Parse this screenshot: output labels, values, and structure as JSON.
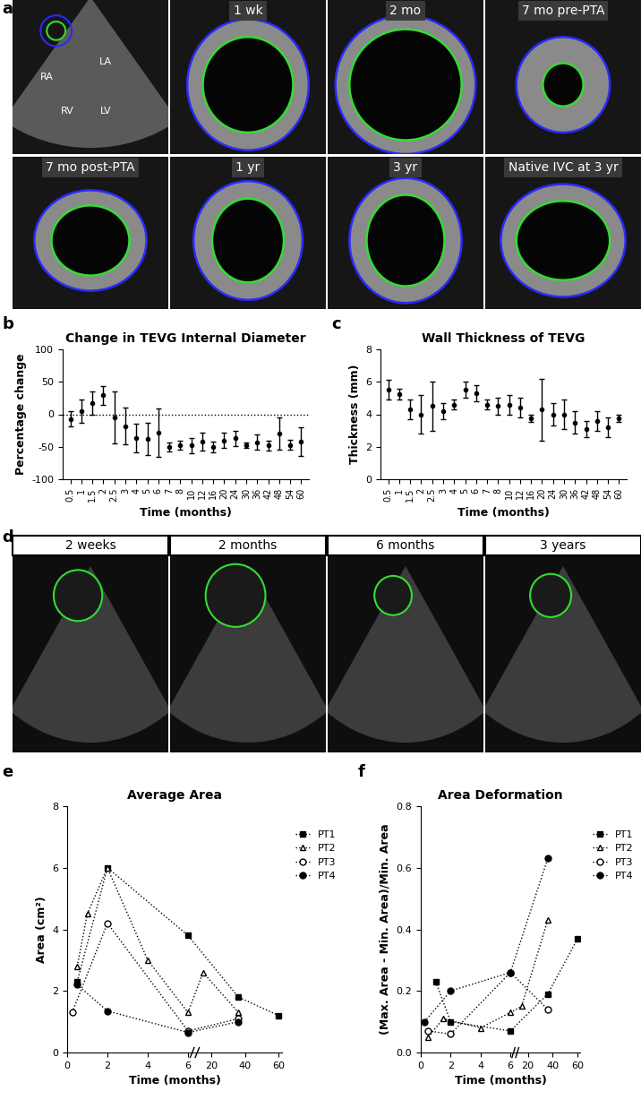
{
  "panel_labels": [
    "a",
    "b",
    "c",
    "d",
    "e",
    "f"
  ],
  "panel_a": {
    "overview_labels": [
      "RA",
      "LA",
      "RV",
      "LV"
    ],
    "tiles": [
      "1 wk",
      "2 mo",
      "7 mo pre-PTA",
      "7 mo post-PTA",
      "1 yr",
      "3 yr",
      "Native IVC at 3 yr"
    ]
  },
  "panel_d": {
    "tiles": [
      "2 weeks",
      "2 months",
      "6 months",
      "3 years"
    ]
  },
  "chart_data": [
    {
      "type": "errorbar",
      "title": "Change in TEVG Internal Diameter",
      "x_label": "Time (months)",
      "y_label": "Percentage change",
      "categories": [
        "0.5",
        "1",
        "1.5",
        "2",
        "2.5",
        "3",
        "4",
        "5",
        "6",
        "7",
        "8",
        "10",
        "12",
        "16",
        "20",
        "24",
        "30",
        "36",
        "42",
        "48",
        "54",
        "60"
      ],
      "values": [
        -7,
        5,
        17,
        29,
        -5,
        -18,
        -37,
        -38,
        -28,
        -50,
        -47,
        -48,
        -42,
        -50,
        -40,
        -37,
        -48,
        -43,
        -48,
        -30,
        -47,
        -42
      ],
      "errors": [
        12,
        18,
        18,
        14,
        40,
        28,
        22,
        25,
        37,
        7,
        7,
        12,
        14,
        8,
        12,
        12,
        4,
        12,
        8,
        25,
        8,
        22
      ],
      "reference_line": 0,
      "color": "#000000",
      "ylim": [
        -100,
        100
      ],
      "yticks": [
        -100,
        -50,
        0,
        50,
        100
      ]
    },
    {
      "type": "errorbar",
      "title": "Wall Thickness of TEVG",
      "x_label": "Time (months)",
      "y_label": "Thickness (mm)",
      "categories": [
        "0.5",
        "1",
        "1.5",
        "2",
        "2.5",
        "3",
        "4",
        "5",
        "6",
        "7",
        "8",
        "10",
        "12",
        "16",
        "20",
        "24",
        "30",
        "36",
        "42",
        "48",
        "54",
        "60"
      ],
      "values": [
        5.5,
        5.25,
        4.3,
        4.0,
        4.5,
        4.2,
        4.6,
        5.5,
        5.3,
        4.6,
        4.5,
        4.6,
        4.4,
        3.75,
        4.3,
        4.0,
        4.0,
        3.5,
        3.1,
        3.6,
        3.2,
        3.75
      ],
      "errors": [
        0.6,
        0.35,
        0.6,
        1.2,
        1.5,
        0.5,
        0.3,
        0.5,
        0.5,
        0.3,
        0.5,
        0.6,
        0.6,
        0.2,
        1.9,
        0.7,
        0.9,
        0.7,
        0.5,
        0.6,
        0.6,
        0.2
      ],
      "color": "#000000",
      "ylim": [
        0,
        8
      ],
      "yticks": [
        0,
        2,
        4,
        6,
        8
      ]
    },
    {
      "type": "line",
      "title": "Average Area",
      "x_label": "Time (months)",
      "y_label": "Area (cm²)",
      "xlim": [
        0,
        62
      ],
      "xticks": [
        0,
        2,
        4,
        6,
        20,
        40,
        60
      ],
      "ylim": [
        0,
        8
      ],
      "yticks": [
        0,
        2,
        4,
        6,
        8
      ],
      "legend": "right",
      "series": [
        {
          "name": "PT1",
          "color": "#000000",
          "marker": "square",
          "line_style": "dotted",
          "x": [
            0.5,
            2,
            6,
            36,
            60
          ],
          "values": [
            2.3,
            6.0,
            3.8,
            1.8,
            1.2
          ]
        },
        {
          "name": "PT2",
          "color": "#000000",
          "marker": "triangle-open",
          "line_style": "dotted",
          "x": [
            0.5,
            1,
            2,
            4,
            6,
            15,
            36
          ],
          "values": [
            2.8,
            4.5,
            6.0,
            3.0,
            1.3,
            2.6,
            1.3
          ]
        },
        {
          "name": "PT3",
          "color": "#000000",
          "marker": "circle-open",
          "line_style": "dotted",
          "x": [
            0.25,
            2,
            6,
            36
          ],
          "values": [
            1.3,
            4.2,
            0.7,
            1.1
          ]
        },
        {
          "name": "PT4",
          "color": "#000000",
          "marker": "circle",
          "line_style": "dotted",
          "x": [
            0.5,
            2,
            6,
            36
          ],
          "values": [
            2.2,
            1.35,
            0.65,
            1.0
          ]
        }
      ]
    },
    {
      "type": "line",
      "title": "Area Deformation",
      "x_label": "Time (months)",
      "y_label": "(Max. Area - Min. Area)/Min. Area",
      "xlim": [
        0,
        62
      ],
      "xticks": [
        0,
        2,
        4,
        6,
        20,
        40,
        60
      ],
      "ylim": [
        0,
        0.8
      ],
      "yticks": [
        {
          "value": 0,
          "label": "0.0"
        },
        {
          "value": 0.2,
          "label": "0.2"
        },
        {
          "value": 0.4,
          "label": "0.4"
        },
        {
          "value": 0.6,
          "label": "0.6"
        },
        {
          "value": 0.8,
          "label": "0.8"
        }
      ],
      "legend": "right",
      "series": [
        {
          "name": "PT1",
          "color": "#000000",
          "marker": "square",
          "line_style": "dotted",
          "x": [
            1,
            2,
            6,
            36,
            60
          ],
          "values": [
            0.23,
            0.1,
            0.07,
            0.19,
            0.37
          ]
        },
        {
          "name": "PT2",
          "color": "#000000",
          "marker": "triangle-open",
          "line_style": "dotted",
          "x": [
            0.5,
            1.5,
            4,
            6,
            15,
            36
          ],
          "values": [
            0.05,
            0.11,
            0.08,
            0.13,
            0.15,
            0.43
          ]
        },
        {
          "name": "PT3",
          "color": "#000000",
          "marker": "circle-open",
          "line_style": "dotted",
          "x": [
            0.5,
            2,
            6,
            36
          ],
          "values": [
            0.07,
            0.06,
            0.26,
            0.14
          ]
        },
        {
          "name": "PT4",
          "color": "#000000",
          "marker": "circle",
          "line_style": "dotted",
          "x": [
            0.25,
            2,
            6,
            36
          ],
          "values": [
            0.1,
            0.2,
            0.26,
            0.63
          ]
        }
      ]
    }
  ]
}
